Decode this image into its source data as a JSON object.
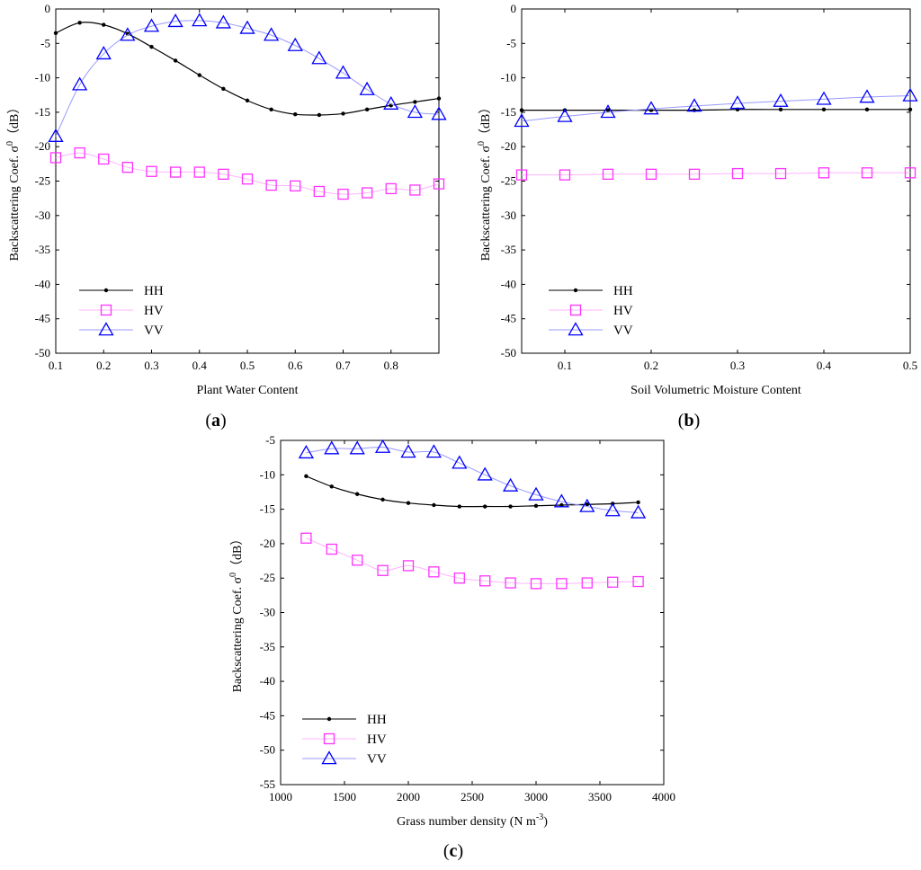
{
  "colors": {
    "HH": "#000000",
    "HV": "#ff33ff",
    "VV": "#0000ff",
    "HV_line": "#ffb3ff",
    "VV_line": "#9999ff"
  },
  "chart_data": [
    {
      "id": "a",
      "type": "line",
      "panel_label": "a",
      "xlabel": "Plant Water Content",
      "ylabel": "Backscattering Coef. σ",
      "ylabel_sup": "0",
      "ylabel_unit": "（dB）",
      "xlim": [
        0.1,
        0.9
      ],
      "ylim": [
        -50,
        0
      ],
      "xticks": [
        0.1,
        0.2,
        0.3,
        0.4,
        0.5,
        0.6,
        0.7,
        0.8
      ],
      "xtick_labels": [
        "0.1",
        "0.2",
        "0.3",
        "0.4",
        "0.5",
        "0.6",
        "0.7",
        "0.8"
      ],
      "yticks": [
        0,
        -5,
        -10,
        -15,
        -20,
        -25,
        -30,
        -35,
        -40,
        -45,
        -50
      ],
      "ytick_labels": [
        "0",
        "-5",
        "-10",
        "-15",
        "-20",
        "-25",
        "-30",
        "-35",
        "-40",
        "-45",
        "-50"
      ],
      "legend": [
        "HH",
        "HV",
        "VV"
      ],
      "series": [
        {
          "name": "HH",
          "x": [
            0.1,
            0.15,
            0.2,
            0.25,
            0.3,
            0.35,
            0.4,
            0.45,
            0.5,
            0.55,
            0.6,
            0.65,
            0.7,
            0.75,
            0.8,
            0.85,
            0.9
          ],
          "values": [
            -3.5,
            -2.0,
            -2.3,
            -3.6,
            -5.5,
            -7.5,
            -9.6,
            -11.6,
            -13.3,
            -14.6,
            -15.3,
            -15.4,
            -15.2,
            -14.6,
            -14.0,
            -13.5,
            -13.0
          ]
        },
        {
          "name": "HV",
          "x": [
            0.1,
            0.15,
            0.2,
            0.25,
            0.3,
            0.35,
            0.4,
            0.45,
            0.5,
            0.55,
            0.6,
            0.65,
            0.7,
            0.75,
            0.8,
            0.85,
            0.9
          ],
          "values": [
            -21.6,
            -20.9,
            -21.8,
            -23.0,
            -23.6,
            -23.7,
            -23.7,
            -24.0,
            -24.7,
            -25.6,
            -25.7,
            -26.5,
            -26.9,
            -26.7,
            -26.1,
            -26.3,
            -25.4
          ]
        },
        {
          "name": "VV",
          "x": [
            0.1,
            0.15,
            0.2,
            0.25,
            0.3,
            0.35,
            0.4,
            0.45,
            0.5,
            0.55,
            0.6,
            0.65,
            0.7,
            0.75,
            0.8,
            0.85,
            0.9
          ],
          "values": [
            -18.5,
            -11.0,
            -6.5,
            -3.8,
            -2.5,
            -1.8,
            -1.7,
            -2.0,
            -2.8,
            -3.8,
            -5.3,
            -7.2,
            -9.3,
            -11.7,
            -13.8,
            -15.0,
            -15.3
          ]
        }
      ]
    },
    {
      "id": "b",
      "type": "line",
      "panel_label": "b",
      "xlabel": "Soil Volumetric Moisture Content",
      "ylabel": "Backscattering Coef. σ",
      "ylabel_sup": "0",
      "ylabel_unit": "（dB）",
      "xlim": [
        0.05,
        0.5
      ],
      "ylim": [
        -50,
        0
      ],
      "xticks": [
        0.1,
        0.2,
        0.3,
        0.4,
        0.5
      ],
      "xtick_labels": [
        "0.1",
        "0.2",
        "0.3",
        "0.4",
        "0.5"
      ],
      "yticks": [
        0,
        -5,
        -10,
        -15,
        -20,
        -25,
        -30,
        -35,
        -40,
        -45,
        -50
      ],
      "ytick_labels": [
        "0",
        "-5",
        "-10",
        "-15",
        "-20",
        "-25",
        "-30",
        "-35",
        "-40",
        "-45",
        "-50"
      ],
      "legend": [
        "HH",
        "HV",
        "VV"
      ],
      "series": [
        {
          "name": "HH",
          "x": [
            0.05,
            0.1,
            0.15,
            0.2,
            0.25,
            0.3,
            0.35,
            0.4,
            0.45,
            0.5
          ],
          "values": [
            -14.7,
            -14.7,
            -14.7,
            -14.7,
            -14.7,
            -14.6,
            -14.6,
            -14.6,
            -14.6,
            -14.6
          ]
        },
        {
          "name": "HV",
          "x": [
            0.05,
            0.1,
            0.15,
            0.2,
            0.25,
            0.3,
            0.35,
            0.4,
            0.45,
            0.5
          ],
          "values": [
            -24.1,
            -24.1,
            -24.0,
            -24.0,
            -24.0,
            -23.9,
            -23.9,
            -23.8,
            -23.8,
            -23.8
          ]
        },
        {
          "name": "VV",
          "x": [
            0.05,
            0.1,
            0.15,
            0.2,
            0.25,
            0.3,
            0.35,
            0.4,
            0.45,
            0.5
          ],
          "values": [
            -16.3,
            -15.6,
            -15.0,
            -14.5,
            -14.1,
            -13.7,
            -13.4,
            -13.1,
            -12.8,
            -12.6
          ]
        }
      ]
    },
    {
      "id": "c",
      "type": "line",
      "panel_label": "c",
      "xlabel": "Grass number density (N m",
      "xlabel_sup": "-3",
      "xlabel_end": ")",
      "ylabel": "Backscattering Coef. σ",
      "ylabel_sup": "0",
      "ylabel_unit": "（dB）",
      "xlim": [
        1000,
        4000
      ],
      "ylim": [
        -55,
        -5
      ],
      "xticks": [
        1000,
        1500,
        2000,
        2500,
        3000,
        3500,
        4000
      ],
      "xtick_labels": [
        "1000",
        "1500",
        "2000",
        "2500",
        "3000",
        "3500",
        "4000"
      ],
      "yticks": [
        -5,
        -10,
        -15,
        -20,
        -25,
        -30,
        -35,
        -40,
        -45,
        -50,
        -55
      ],
      "ytick_labels": [
        "-5",
        "-10",
        "-15",
        "-20",
        "-25",
        "-30",
        "-35",
        "-40",
        "-45",
        "-50",
        "-55"
      ],
      "legend": [
        "HH",
        "HV",
        "VV"
      ],
      "series": [
        {
          "name": "HH",
          "x": [
            1200,
            1400,
            1600,
            1800,
            2000,
            2200,
            2400,
            2600,
            2800,
            3000,
            3200,
            3400,
            3600,
            3800
          ],
          "values": [
            -10.2,
            -11.7,
            -12.8,
            -13.6,
            -14.1,
            -14.4,
            -14.6,
            -14.6,
            -14.6,
            -14.5,
            -14.4,
            -14.3,
            -14.2,
            -14.0
          ]
        },
        {
          "name": "HV",
          "x": [
            1200,
            1400,
            1600,
            1800,
            2000,
            2200,
            2400,
            2600,
            2800,
            3000,
            3200,
            3400,
            3600,
            3800
          ],
          "values": [
            -19.2,
            -20.8,
            -22.4,
            -23.9,
            -23.2,
            -24.1,
            -25.0,
            -25.4,
            -25.7,
            -25.8,
            -25.8,
            -25.7,
            -25.6,
            -25.5
          ]
        },
        {
          "name": "VV",
          "x": [
            1200,
            1400,
            1600,
            1800,
            2000,
            2200,
            2400,
            2600,
            2800,
            3000,
            3200,
            3400,
            3600,
            3800
          ],
          "values": [
            -6.8,
            -6.2,
            -6.2,
            -6.0,
            -6.7,
            -6.7,
            -8.3,
            -10.0,
            -11.6,
            -12.9,
            -13.9,
            -14.6,
            -15.2,
            -15.5
          ]
        }
      ]
    }
  ]
}
